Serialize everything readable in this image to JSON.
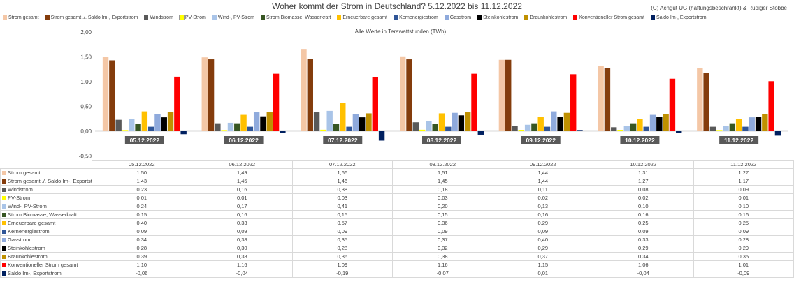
{
  "title": "Woher kommt der Strom in Deutschland? 5.12.2022 bis 11.12.2022",
  "credit": "(C) Achgut UG (haftungsbeschränkt) & Rüdiger Stobbe",
  "chart_data": {
    "type": "bar",
    "title": "Woher kommt der Strom in Deutschland? 5.12.2022 bis 11.12.2022",
    "subtitle": "Alle Werte in Terawattstunden (TWh)",
    "xlabel": "",
    "ylabel": "",
    "ylim": [
      -0.5,
      2.0
    ],
    "y_ticks": [
      "2,00",
      "1,50",
      "1,00",
      "0,50",
      "0,00",
      "-0,50"
    ],
    "grid": false,
    "legend_position": "top",
    "categories": [
      "05.12.2022",
      "06.12.2022",
      "07.12.2022",
      "08.12.2022",
      "09.12.2022",
      "10.12.2022",
      "11.12.2022"
    ],
    "series": [
      {
        "name": "Strom gesamt",
        "color": "#f4c7a6",
        "values": [
          1.5,
          1.49,
          1.66,
          1.51,
          1.44,
          1.31,
          1.27
        ],
        "labels": [
          "1,50",
          "1,49",
          "1,66",
          "1,51",
          "1,44",
          "1,31",
          "1,27"
        ]
      },
      {
        "name": "Strom gesamt ./. Saldo Im-, Exportstrom",
        "color": "#843c0c",
        "values": [
          1.43,
          1.45,
          1.46,
          1.45,
          1.44,
          1.27,
          1.17
        ],
        "labels": [
          "1,43",
          "1,45",
          "1,46",
          "1,45",
          "1,44",
          "1,27",
          "1,17"
        ]
      },
      {
        "name": "Windstrom",
        "color": "#595959",
        "values": [
          0.23,
          0.16,
          0.38,
          0.18,
          0.11,
          0.08,
          0.09
        ],
        "labels": [
          "0,23",
          "0,16",
          "0,38",
          "0,18",
          "0,11",
          "0,08",
          "0,09"
        ]
      },
      {
        "name": "PV-Strom",
        "color": "#ffff00",
        "values": [
          0.01,
          0.01,
          0.03,
          0.03,
          0.02,
          0.02,
          0.01
        ],
        "labels": [
          "0,01",
          "0,01",
          "0,03",
          "0,03",
          "0,02",
          "0,02",
          "0,01"
        ]
      },
      {
        "name": "Wind-, PV-Strom",
        "color": "#a9c4e8",
        "values": [
          0.24,
          0.17,
          0.41,
          0.2,
          0.13,
          0.1,
          0.1
        ],
        "labels": [
          "0,24",
          "0,17",
          "0,41",
          "0,20",
          "0,13",
          "0,10",
          "0,10"
        ]
      },
      {
        "name": "Strom Biomasse, Wasserkraft",
        "color": "#375623",
        "values": [
          0.15,
          0.16,
          0.15,
          0.15,
          0.16,
          0.16,
          0.16
        ],
        "labels": [
          "0,15",
          "0,16",
          "0,15",
          "0,15",
          "0,16",
          "0,16",
          "0,16"
        ]
      },
      {
        "name": "Erneuerbare gesamt",
        "color": "#ffc000",
        "values": [
          0.4,
          0.33,
          0.57,
          0.36,
          0.29,
          0.25,
          0.25
        ],
        "labels": [
          "0,40",
          "0,33",
          "0,57",
          "0,36",
          "0,29",
          "0,25",
          "0,25"
        ]
      },
      {
        "name": "Kernenergiestrom",
        "color": "#2f5597",
        "values": [
          0.09,
          0.09,
          0.09,
          0.09,
          0.09,
          0.09,
          0.09
        ],
        "labels": [
          "0,09",
          "0,09",
          "0,09",
          "0,09",
          "0,09",
          "0,09",
          "0,09"
        ]
      },
      {
        "name": "Gasstrom",
        "color": "#8faadc",
        "values": [
          0.34,
          0.38,
          0.35,
          0.37,
          0.4,
          0.33,
          0.28
        ],
        "labels": [
          "0,34",
          "0,38",
          "0,35",
          "0,37",
          "0,40",
          "0,33",
          "0,28"
        ]
      },
      {
        "name": "Steinkohlestrom",
        "color": "#000000",
        "values": [
          0.28,
          0.3,
          0.28,
          0.32,
          0.29,
          0.29,
          0.29
        ],
        "labels": [
          "0,28",
          "0,30",
          "0,28",
          "0,32",
          "0,29",
          "0,29",
          "0,29"
        ]
      },
      {
        "name": "Braunkohlestrom",
        "color": "#bf9000",
        "values": [
          0.39,
          0.38,
          0.36,
          0.38,
          0.37,
          0.34,
          0.35
        ],
        "labels": [
          "0,39",
          "0,38",
          "0,36",
          "0,38",
          "0,37",
          "0,34",
          "0,35"
        ]
      },
      {
        "name": "Konventioneller Strom gesamt",
        "color": "#ff0000",
        "values": [
          1.1,
          1.16,
          1.09,
          1.16,
          1.15,
          1.06,
          1.01
        ],
        "labels": [
          "1,10",
          "1,16",
          "1,09",
          "1,16",
          "1,15",
          "1,06",
          "1,01"
        ]
      },
      {
        "name": "Saldo Im-, Exportstrom",
        "color": "#002060",
        "values": [
          -0.06,
          -0.04,
          -0.19,
          -0.07,
          0.01,
          -0.04,
          -0.09
        ],
        "labels": [
          "-0,06",
          "-0,04",
          "-0,19",
          "-0,07",
          "0,01",
          "-0,04",
          "-0,09"
        ]
      }
    ]
  }
}
